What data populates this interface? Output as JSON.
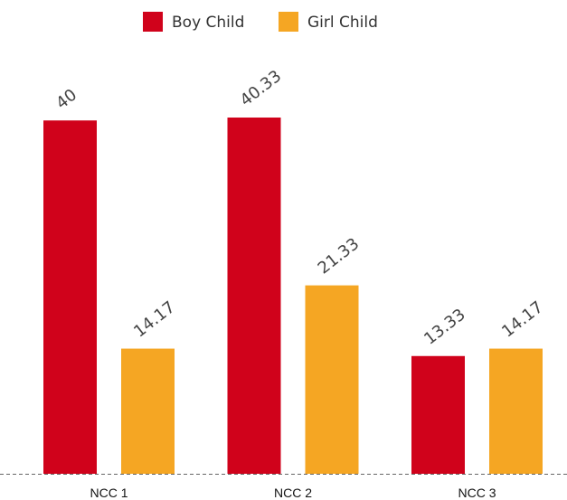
{
  "chart_data": {
    "type": "bar",
    "categories": [
      "NCC 1",
      "NCC 2",
      "NCC 3"
    ],
    "series": [
      {
        "name": "Boy Child",
        "color": "#d0021b",
        "values": [
          40,
          40.33,
          13.33
        ]
      },
      {
        "name": "Girl Child",
        "color": "#f5a623",
        "values": [
          14.17,
          21.33,
          14.17
        ]
      }
    ],
    "legend": "top"
  }
}
